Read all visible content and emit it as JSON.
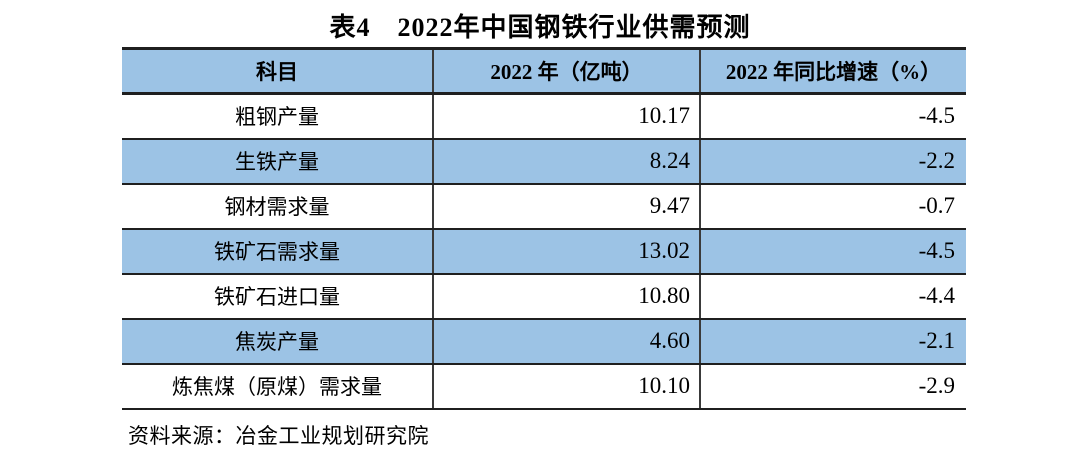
{
  "page": {
    "title": "表4　2022年中国钢铁行业供需预测",
    "source_note": "资料来源：冶金工业规划研究院"
  },
  "colors": {
    "header_bg": "#9cc3e5",
    "alt_row_bg": "#9cc3e5",
    "border": "#1f1f1f",
    "text": "#000000",
    "page_bg": "#ffffff"
  },
  "table": {
    "headers": {
      "item": "科目",
      "value": "2022 年（亿吨）",
      "growth": "2022 年同比增速（%）"
    },
    "rows": [
      {
        "label": "粗钢产量",
        "value": "10.17",
        "growth": "-4.5"
      },
      {
        "label": "生铁产量",
        "value": "8.24",
        "growth": "-2.2"
      },
      {
        "label": "钢材需求量",
        "value": "9.47",
        "growth": "-0.7"
      },
      {
        "label": "铁矿石需求量",
        "value": "13.02",
        "growth": "-4.5"
      },
      {
        "label": "铁矿石进口量",
        "value": "10.80",
        "growth": "-4.4"
      },
      {
        "label": "焦炭产量",
        "value": "4.60",
        "growth": "-2.1"
      },
      {
        "label": "炼焦煤（原煤）需求量",
        "value": "10.10",
        "growth": "-2.9"
      }
    ]
  }
}
